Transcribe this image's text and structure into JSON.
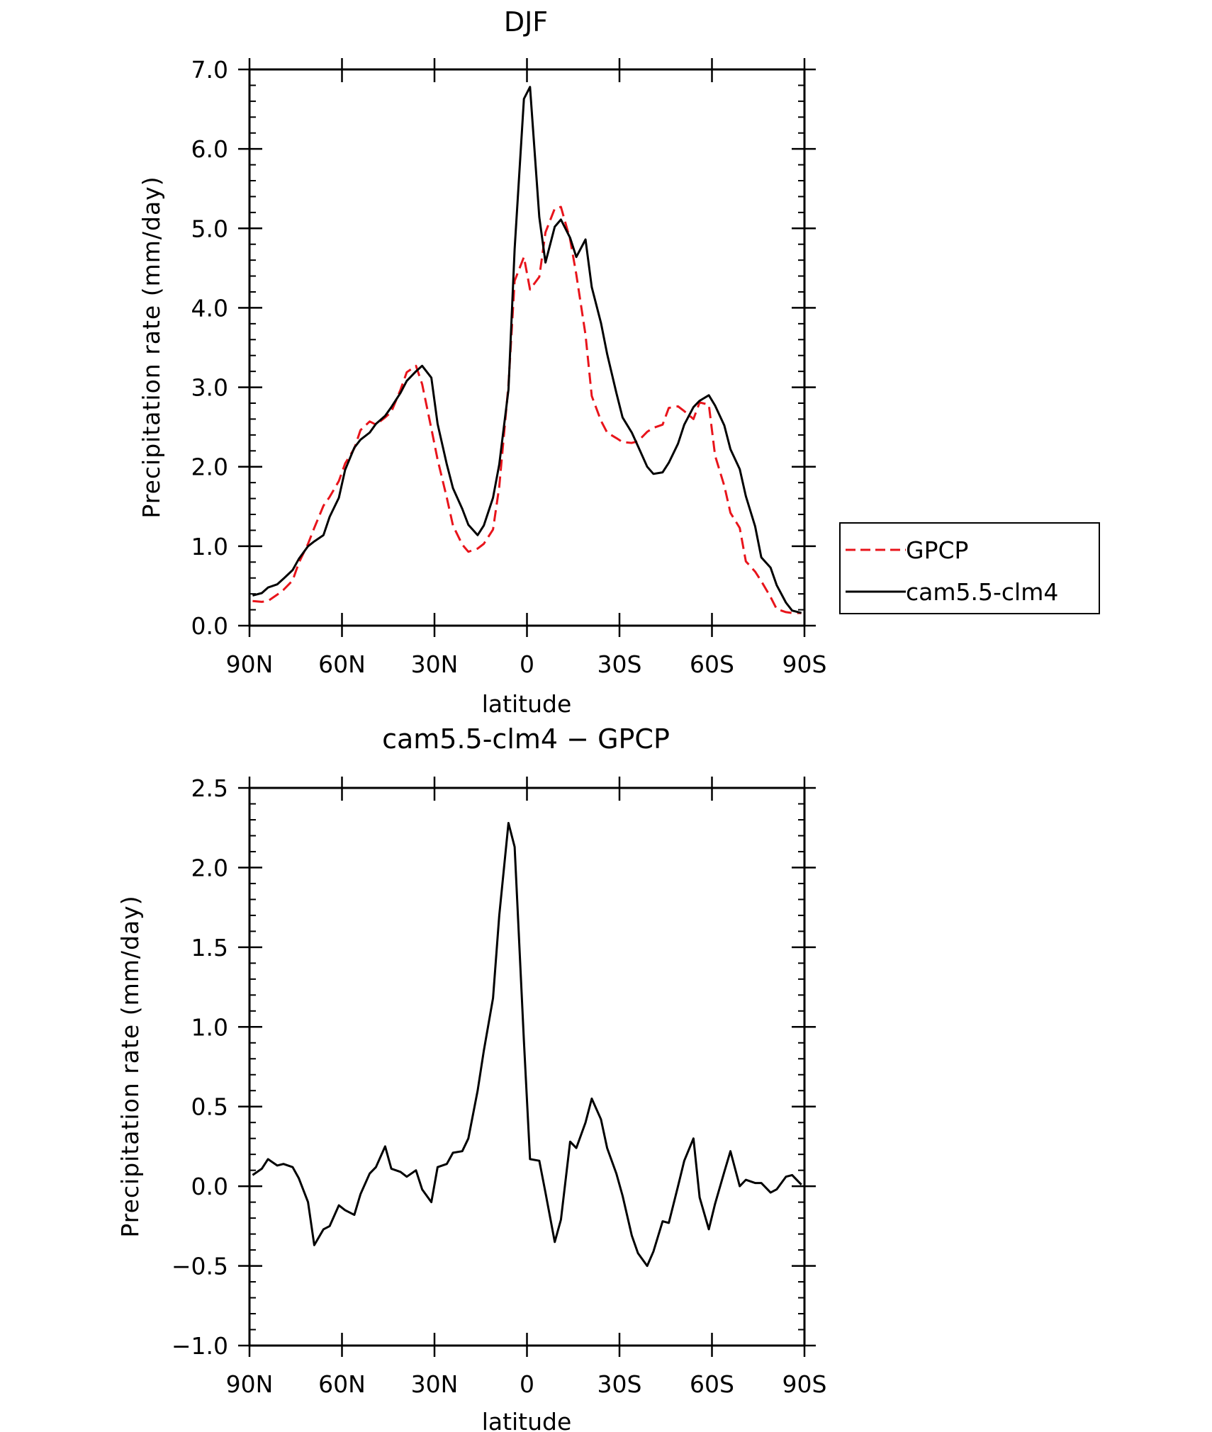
{
  "chart_data": [
    {
      "type": "line",
      "title": "DJF",
      "xlabel": "latitude",
      "ylabel": "Precipitation rate (mm/day)",
      "xlim": [
        90,
        -90
      ],
      "ylim": [
        0,
        7
      ],
      "xticks": [
        90,
        60,
        30,
        0,
        -30,
        -60,
        -90
      ],
      "xtick_labels": [
        "90N",
        "60N",
        "30N",
        "0",
        "30S",
        "60S",
        "90S"
      ],
      "yticks": [
        0,
        1,
        2,
        3,
        4,
        5,
        6,
        7
      ],
      "ytick_labels": [
        "0.0",
        "1.0",
        "2.0",
        "3.0",
        "4.0",
        "5.0",
        "6.0",
        "7.0"
      ],
      "legend_position": "right",
      "x": [
        89,
        86,
        84,
        81,
        79,
        76,
        74,
        71,
        69,
        66,
        64,
        61,
        59,
        56,
        54,
        51,
        49,
        46,
        44,
        41,
        39,
        36,
        34,
        31,
        29,
        26,
        24,
        21,
        19,
        16,
        14,
        11,
        9,
        6,
        4,
        1,
        -1,
        -4,
        -6,
        -9,
        -11,
        -14,
        -16,
        -19,
        -21,
        -24,
        -26,
        -29,
        -31,
        -34,
        -36,
        -39,
        -41,
        -44,
        -46,
        -49,
        -51,
        -54,
        -56,
        -59,
        -61,
        -64,
        -66,
        -69,
        -71,
        -74,
        -76,
        -79,
        -81,
        -84,
        -86,
        -89
      ],
      "series": [
        {
          "name": "GPCP",
          "color": "#e8141b",
          "dash": "dashed",
          "values": [
            0.31,
            0.3,
            0.31,
            0.39,
            0.45,
            0.57,
            0.79,
            1.03,
            1.23,
            1.51,
            1.62,
            1.82,
            2.04,
            2.23,
            2.46,
            2.57,
            2.53,
            2.62,
            2.69,
            2.97,
            3.19,
            3.27,
            3.04,
            2.48,
            2.09,
            1.61,
            1.26,
            1.02,
            0.93,
            0.97,
            1.03,
            1.21,
            1.75,
            3.03,
            4.34,
            4.64,
            4.23,
            4.39,
            4.95,
            5.25,
            5.27,
            4.86,
            4.42,
            3.66,
            2.89,
            2.58,
            2.43,
            2.36,
            2.31,
            2.3,
            2.32,
            2.44,
            2.49,
            2.53,
            2.74,
            2.76,
            2.7,
            2.6,
            2.81,
            2.78,
            2.14,
            1.76,
            1.42,
            1.23,
            0.81,
            0.68,
            0.56,
            0.36,
            0.21,
            0.17,
            0.16,
            0.16
          ]
        },
        {
          "name": "cam5.5-clm4",
          "color": "#000000",
          "dash": "solid",
          "values": [
            0.38,
            0.41,
            0.48,
            0.52,
            0.59,
            0.7,
            0.84,
            1.0,
            1.06,
            1.14,
            1.37,
            1.61,
            1.96,
            2.24,
            2.34,
            2.43,
            2.54,
            2.64,
            2.75,
            2.93,
            3.08,
            3.2,
            3.27,
            3.12,
            2.54,
            2.03,
            1.73,
            1.47,
            1.27,
            1.14,
            1.26,
            1.61,
            2.03,
            2.97,
            4.74,
            6.63,
            6.78,
            5.14,
            4.57,
            5.02,
            5.11,
            4.88,
            4.64,
            4.86,
            4.26,
            3.81,
            3.42,
            2.93,
            2.62,
            2.43,
            2.26,
            2.0,
            1.91,
            1.93,
            2.05,
            2.29,
            2.53,
            2.75,
            2.83,
            2.9,
            2.77,
            2.52,
            2.22,
            1.97,
            1.63,
            1.25,
            0.86,
            0.73,
            0.51,
            0.29,
            0.19,
            0.16
          ]
        }
      ]
    },
    {
      "type": "line",
      "title": "cam5.5-clm4 − GPCP",
      "xlabel": "latitude",
      "ylabel": "Precipitation rate (mm/day)",
      "xlim": [
        90,
        -90
      ],
      "ylim": [
        -1.0,
        2.5
      ],
      "xticks": [
        90,
        60,
        30,
        0,
        -30,
        -60,
        -90
      ],
      "xtick_labels": [
        "90N",
        "60N",
        "30N",
        "0",
        "30S",
        "60S",
        "90S"
      ],
      "yticks": [
        -1.0,
        -0.5,
        0.0,
        0.5,
        1.0,
        1.5,
        2.0,
        2.5
      ],
      "ytick_labels": [
        "−1.0",
        "−0.5",
        "0.0",
        "0.5",
        "1.0",
        "1.5",
        "2.0",
        "2.5"
      ],
      "x": [
        89,
        86,
        84,
        81,
        79,
        76,
        74,
        71,
        69,
        66,
        64,
        61,
        59,
        56,
        54,
        51,
        49,
        46,
        44,
        41,
        39,
        36,
        34,
        31,
        29,
        26,
        24,
        21,
        19,
        16,
        14,
        11,
        9,
        6,
        4,
        1,
        -1,
        -4,
        -6,
        -9,
        -11,
        -14,
        -16,
        -19,
        -21,
        -24,
        -26,
        -29,
        -31,
        -34,
        -36,
        -39,
        -41,
        -44,
        -46,
        -49,
        -51,
        -54,
        -56,
        -59,
        -61,
        -64,
        -66,
        -69,
        -71,
        -74,
        -76,
        -79,
        -81,
        -84,
        -86,
        -89
      ],
      "series": [
        {
          "color": "#000000",
          "values": [
            0.07,
            0.11,
            0.17,
            0.13,
            0.14,
            0.12,
            0.05,
            -0.1,
            -0.37,
            -0.27,
            -0.25,
            -0.12,
            -0.15,
            -0.18,
            -0.05,
            0.08,
            0.12,
            0.25,
            0.11,
            0.09,
            0.06,
            0.1,
            -0.02,
            -0.1,
            0.12,
            0.14,
            0.21,
            0.22,
            0.3,
            0.6,
            0.85,
            1.18,
            1.7,
            2.28,
            2.13,
            0.91,
            0.17,
            0.16,
            -0.04,
            -0.35,
            -0.21,
            0.28,
            0.24,
            0.4,
            0.55,
            0.42,
            0.24,
            0.08,
            -0.06,
            -0.31,
            -0.42,
            -0.5,
            -0.41,
            -0.22,
            -0.23,
            0.0,
            0.16,
            0.3,
            -0.07,
            -0.27,
            -0.11,
            0.09,
            0.22,
            0.0,
            0.04,
            0.02,
            0.02,
            -0.04,
            -0.02,
            0.06,
            0.07,
            0.01
          ]
        }
      ]
    }
  ]
}
